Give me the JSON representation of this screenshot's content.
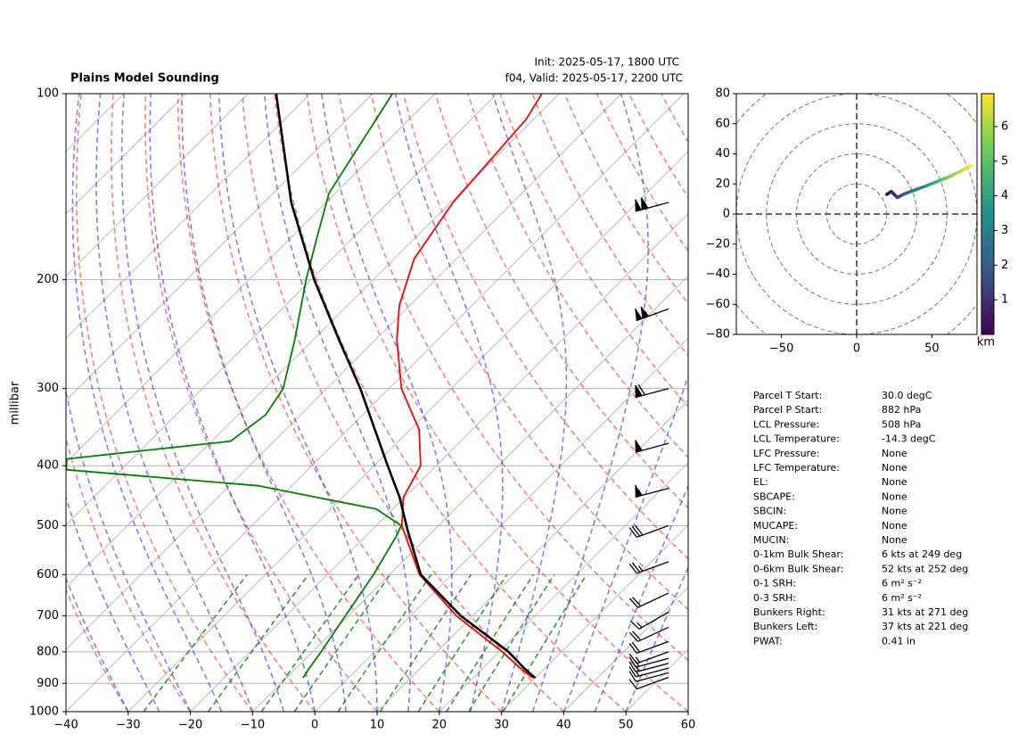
{
  "chart_data": [
    {
      "type": "skewt",
      "title": "Plains Model Sounding",
      "subtitle": [
        "Init: 2025-05-17, 1800 UTC",
        "f04, Valid: 2025-05-17, 2200 UTC"
      ],
      "ylabel": "millibar",
      "xlim": [
        -40,
        60
      ],
      "ylim": [
        1000,
        100
      ],
      "log_y": true,
      "xticks": [
        {
          "value": -40,
          "label": "−40"
        },
        {
          "value": -30,
          "label": "−30"
        },
        {
          "value": -20,
          "label": "−20"
        },
        {
          "value": -10,
          "label": "−10"
        },
        0,
        10,
        20,
        30,
        40,
        50,
        60
      ],
      "yticks": [
        100,
        200,
        300,
        400,
        500,
        600,
        700,
        800,
        900,
        1000
      ],
      "grid": true,
      "series": [
        {
          "color": "#ff0000",
          "y": [
            882,
            850,
            800,
            700,
            600,
            500,
            450,
            400,
            350,
            300,
            250,
            220,
            185,
            150,
            110,
            100
          ],
          "values": [
            29.6,
            26,
            20.5,
            7.4,
            -5.2,
            -15.9,
            -20.2,
            -22.5,
            -28.5,
            -38,
            -46.6,
            -51.7,
            -56.8,
            -59.6,
            -61.2,
            -62.8
          ]
        },
        {
          "color": "#008000",
          "y": [
            882,
            850,
            800,
            700,
            600,
            520,
            500,
            470,
            440,
            431,
            406,
            390,
            365,
            331,
            300,
            250,
            200,
            170,
            145,
            100
          ],
          "values": [
            -7.3,
            -7.9,
            -8.6,
            -10.5,
            -12.6,
            -15.1,
            -16,
            -22.7,
            -40,
            -45.3,
            -78.8,
            -80.5,
            -57,
            -55.6,
            -57,
            -63,
            -70.8,
            -76,
            -81,
            -86.8
          ]
        },
        {
          "color": "#000000",
          "y": [
            882,
            850,
            800,
            700,
            600,
            508,
            450,
            400,
            300,
            250,
            200,
            150,
            100
          ],
          "values": [
            30,
            26.6,
            21.5,
            8.1,
            -5,
            -14.3,
            -20.8,
            -27.8,
            -44.6,
            -55.9,
            -69.5,
            -85.6,
            -105.5
          ]
        }
      ],
      "wind": {
        "y": [
          880,
          865,
          850,
          835,
          820,
          800,
          770,
          730,
          690,
          643,
          572,
          500,
          435,
          368,
          300,
          223,
          150
        ],
        "speed": [
          10,
          10,
          15,
          15,
          15,
          15,
          20,
          20,
          15,
          20,
          25,
          30,
          55,
          60,
          70,
          105,
          110
        ],
        "direction": [
          250,
          255,
          255,
          255,
          255,
          250,
          250,
          245,
          240,
          245,
          250,
          250,
          255,
          255,
          255,
          250,
          255
        ]
      }
    },
    {
      "type": "hodograph",
      "xlim": [
        -80,
        80
      ],
      "ylim": [
        -80,
        80
      ],
      "xticks": [
        {
          "value": -50,
          "label": "−50"
        },
        0,
        50
      ],
      "yticks": [
        {
          "value": -80,
          "label": "−80"
        },
        {
          "value": -60,
          "label": "−60"
        },
        {
          "value": -40,
          "label": "−40"
        },
        {
          "value": -20,
          "label": "−20"
        },
        0,
        20,
        40,
        60,
        80
      ],
      "u": [
        20,
        23,
        27,
        32,
        47,
        62,
        76
      ],
      "v": [
        13,
        15,
        11,
        13.5,
        19,
        25,
        32
      ],
      "height": [
        0.1,
        0.5,
        1,
        2,
        3.5,
        5.5,
        6.9
      ],
      "clim": [
        0,
        6.95
      ],
      "colorbar_ticks": [
        1,
        2,
        3,
        4,
        5,
        6
      ],
      "colorbar_label": "km"
    }
  ],
  "parameters": [
    {
      "label": "Parcel T Start:",
      "value": "30.0 degC"
    },
    {
      "label": "Parcel P Start:",
      "value": "882 hPa"
    },
    {
      "label": "LCL Pressure:",
      "value": "508 hPa"
    },
    {
      "label": "LCL Temperature:",
      "value": "-14.3 degC"
    },
    {
      "label": "LFC Pressure:",
      "value": "None"
    },
    {
      "label": "LFC Temperature:",
      "value": "None"
    },
    {
      "label": "EL:",
      "value": "None"
    },
    {
      "label": "SBCAPE:",
      "value": "None"
    },
    {
      "label": "SBCIN:",
      "value": "None"
    },
    {
      "label": "MUCAPE:",
      "value": "None"
    },
    {
      "label": "MUCIN:",
      "value": "None"
    },
    {
      "label": "0-1km Bulk Shear:",
      "value": "6 kts at 249 deg"
    },
    {
      "label": "0-6km Bulk Shear:",
      "value": "52 kts at 252 deg"
    },
    {
      "label": "0-1 SRH:",
      "value": "6 m² s⁻²"
    },
    {
      "label": "0-3 SRH:",
      "value": "6 m² s⁻²"
    },
    {
      "label": "Bunkers Right:",
      "value": "31 kts at 271 deg"
    },
    {
      "label": "Bunkers Left:",
      "value": "37 kts at 221 deg"
    },
    {
      "label": "PWAT:",
      "value": "0.41 in"
    }
  ]
}
